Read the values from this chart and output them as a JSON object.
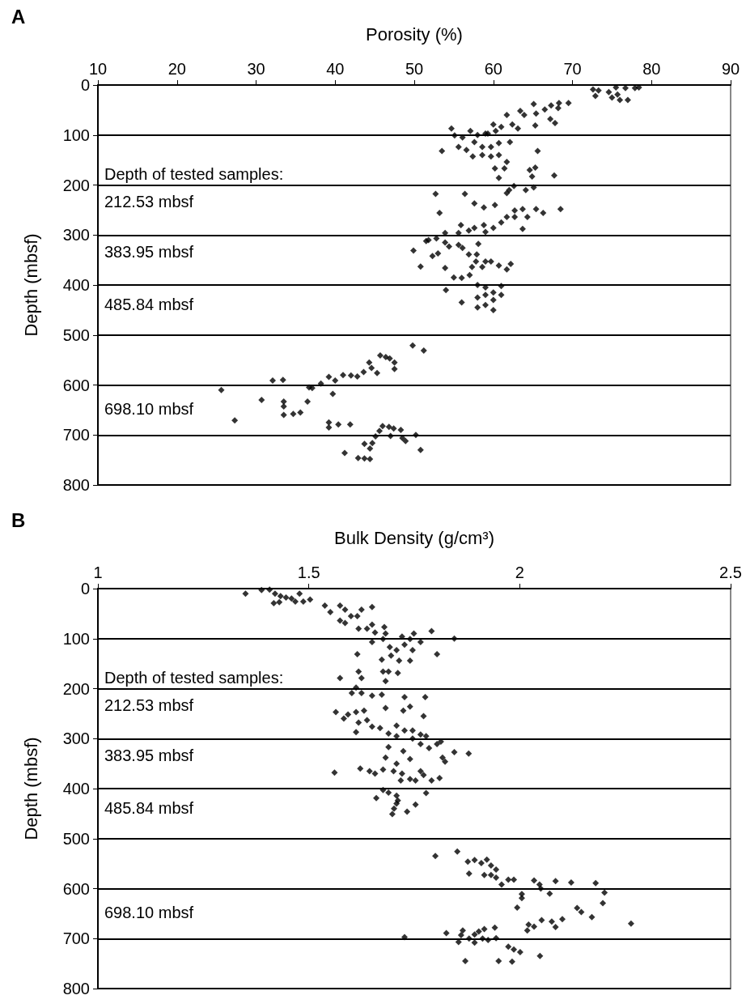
{
  "chart_data": [
    {
      "type": "scatter",
      "title": "A",
      "xlabel": "Porosity (%)",
      "ylabel": "Depth (mbsf)",
      "xlim": [
        10,
        90
      ],
      "xticks": [
        10,
        20,
        30,
        40,
        50,
        60,
        70,
        80,
        90
      ],
      "ylim": [
        800,
        0
      ],
      "yticks": [
        0,
        100,
        200,
        300,
        400,
        500,
        600,
        700,
        800
      ],
      "grid": "y",
      "marker": "diamond",
      "annotations": [
        "Depth of tested samples:",
        "212.53 mbsf",
        "383.95 mbsf",
        "485.84 mbsf",
        "698.10 mbsf"
      ],
      "series": [
        {
          "color": "#000000",
          "x": [
            72.6,
            72.9,
            74.6,
            75,
            75.7,
            76,
            75.5,
            76.7,
            77,
            77.9,
            78.4,
            73.3,
            65.1,
            67.3,
            68.3,
            69.5,
            68.2,
            63.4,
            63.9,
            65.4,
            66.5,
            67.2,
            67.8,
            65.3,
            61.7,
            62.4,
            63.1,
            60,
            61,
            59.3,
            54.7,
            55.1,
            56.1,
            57.1,
            58,
            59,
            60.3,
            55.6,
            56.6,
            57.6,
            58.6,
            59.7,
            60.7,
            62.1,
            57.4,
            58.6,
            59.7,
            60.7,
            61.7,
            53.5,
            60.2,
            61.4,
            60.7,
            65.6,
            64.6,
            65.3,
            64.9,
            67.7,
            62.6,
            61.7,
            62,
            64.1,
            65.1,
            52.7,
            56.4,
            53.2,
            57.6,
            58.8,
            60.2,
            68.5,
            62.7,
            63.7,
            65.4,
            66.3,
            61.7,
            62.7,
            64.3,
            63.7,
            61,
            60,
            58.8,
            59,
            57.6,
            55.9,
            56.9,
            55.6,
            53.9,
            52.8,
            51.8,
            51.5,
            49.9,
            50.8,
            52.3,
            53,
            53.9,
            54.4,
            55.6,
            56.1,
            56.9,
            58.1,
            57.9,
            57.8,
            59,
            59.7,
            60.7,
            62.2,
            57.3,
            58.6,
            61.7,
            53.9,
            55,
            56,
            57,
            54,
            56,
            58,
            59,
            60,
            61,
            59,
            58,
            60,
            59,
            60,
            58,
            61,
            25.6,
            27.3,
            30.7,
            32.1,
            33.4,
            33.5,
            33.5,
            33.5,
            34.7,
            35.6,
            36.5,
            36.7,
            37.1,
            38.2,
            39.2,
            40,
            39.7,
            41,
            42,
            42.8,
            43.6,
            44.3,
            44.6,
            45.3,
            45.7,
            46.4,
            46.9,
            47.5,
            47.5,
            49.8,
            51.2,
            39.2,
            39.2,
            40.4,
            41.9,
            41.2,
            42.9,
            43.7,
            44.4,
            43.7,
            44.7,
            44.4,
            45.1,
            45.6,
            46,
            46.8,
            47.4,
            48.3,
            47,
            48.5,
            48.9,
            50.2,
            50.8
          ],
          "values": [
            9,
            22,
            14,
            25,
            19,
            30,
            5,
            6,
            30,
            6,
            5,
            11,
            38,
            41,
            36,
            36,
            46,
            52,
            60,
            57,
            49,
            68,
            76,
            81,
            60,
            79,
            87,
            79,
            84,
            97,
            87,
            101,
            105,
            92,
            100,
            97,
            92,
            124,
            130,
            114,
            124,
            124,
            116,
            114,
            143,
            140,
            143,
            140,
            154,
            132,
            167,
            167,
            186,
            132,
            170,
            165,
            183,
            181,
            202,
            216,
            210,
            210,
            205,
            218,
            218,
            256,
            237,
            245,
            240,
            248,
            251,
            248,
            248,
            256,
            264,
            264,
            264,
            288,
            275,
            286,
            280,
            294,
            286,
            280,
            291,
            296,
            296,
            307,
            310,
            312,
            331,
            363,
            342,
            337,
            315,
            323,
            320,
            326,
            339,
            318,
            339,
            353,
            353,
            353,
            361,
            358,
            364,
            364,
            369,
            366,
            385,
            386,
            380,
            410,
            435,
            400,
            405,
            415,
            402,
            420,
            425,
            430,
            440,
            450,
            445,
            420,
            610,
            671,
            630,
            591,
            590,
            633,
            643,
            660,
            658,
            655,
            633,
            605,
            606,
            597,
            584,
            591,
            618,
            580,
            581,
            583,
            574,
            555,
            566,
            576,
            541,
            544,
            547,
            555,
            568,
            521,
            531,
            675,
            685,
            679,
            679,
            736,
            746,
            747,
            748,
            718,
            716,
            727,
            703,
            692,
            682,
            684,
            687,
            690,
            702,
            706,
            712,
            700,
            730
          ]
        }
      ]
    },
    {
      "type": "scatter",
      "title": "B",
      "xlabel": "Bulk Density (g/cm³)",
      "ylabel": "Depth (mbsf)",
      "xlim": [
        1,
        2.5
      ],
      "xticks": [
        1,
        1.5,
        2,
        2.5
      ],
      "ylim": [
        800,
        0
      ],
      "yticks": [
        0,
        100,
        200,
        300,
        400,
        500,
        600,
        700,
        800
      ],
      "grid": "y",
      "marker": "diamond",
      "annotations": [
        "Depth of tested samples:",
        "212.53 mbsf",
        "383.95 mbsf",
        "485.84 mbsf",
        "698.10 mbsf"
      ],
      "series": [
        {
          "color": "#000000",
          "x": [
            1.35,
            1.388,
            1.407,
            1.42,
            1.433,
            1.446,
            1.459,
            1.417,
            1.43,
            1.468,
            1.478,
            1.487,
            1.503,
            1.538,
            1.551,
            1.574,
            1.586,
            1.574,
            1.586,
            1.6,
            1.615,
            1.625,
            1.65,
            1.618,
            1.638,
            1.65,
            1.657,
            1.679,
            1.682,
            1.676,
            1.791,
            1.845,
            1.65,
            1.721,
            1.74,
            1.749,
            1.765,
            1.692,
            1.708,
            1.727,
            1.746,
            1.695,
            1.714,
            1.74,
            1.673,
            1.615,
            1.804,
            1.618,
            1.625,
            1.574,
            1.676,
            1.689,
            1.682,
            1.711,
            1.612,
            1.602,
            1.625,
            1.65,
            1.673,
            1.727,
            1.776,
            1.74,
            1.724,
            1.682,
            1.772,
            1.564,
            1.583,
            1.593,
            1.612,
            1.631,
            1.618,
            1.638,
            1.612,
            1.65,
            1.669,
            1.708,
            1.689,
            1.708,
            1.727,
            1.746,
            1.765,
            1.778,
            1.746,
            1.765,
            1.785,
            1.804,
            1.813,
            1.845,
            1.879,
            1.689,
            1.724,
            1.74,
            1.682,
            1.708,
            1.817,
            1.823,
            1.561,
            1.622,
            1.644,
            1.657,
            1.676,
            1.701,
            1.721,
            1.74,
            1.765,
            1.772,
            1.791,
            1.81,
            1.753,
            1.718,
            1.676,
            1.689,
            1.708,
            1.66,
            1.711,
            1.702,
            1.708,
            1.698,
            1.733,
            1.753,
            1.778,
            1.8,
            1.852,
            1.877,
            1.893,
            1.909,
            1.922,
            1.88,
            1.916,
            1.932,
            1.932,
            1.944,
            1.944,
            1.957,
            1.973,
            1.986,
            2.034,
            2.047,
            2.05,
            2.071,
            2.085,
            2.122,
            2.18,
            2.201,
            2.197,
            2.005,
            2.005,
            1.994,
            2.136,
            2.146,
            2.171,
            2.264,
            2.101,
            2.076,
            2.085,
            2.052,
            2.021,
            2.034,
            2.018,
            1.727,
            1.826,
            1.865,
            1.861,
            1.855,
            1.88,
            1.893,
            1.893,
            1.903,
            1.916,
            1.912,
            1.925,
            1.941,
            1.944,
            1.871,
            1.95,
            1.982,
            1.973,
            1.986,
            2.001,
            2.048
          ],
          "values": [
            10,
            3,
            2,
            10,
            15,
            18,
            20,
            29,
            27,
            26,
            10,
            26,
            22,
            34,
            47,
            34,
            42,
            64,
            69,
            55,
            55,
            42,
            37,
            80,
            80,
            72,
            88,
            77,
            90,
            101,
            85,
            100,
            107,
            96,
            101,
            90,
            107,
            117,
            123,
            112,
            123,
            134,
            144,
            144,
            142,
            131,
            131,
            166,
            179,
            179,
            166,
            166,
            185,
            169,
            198,
            209,
            209,
            214,
            212,
            217,
            217,
            236,
            244,
            239,
            255,
            247,
            260,
            252,
            247,
            244,
            268,
            263,
            287,
            276,
            279,
            274,
            290,
            295,
            284,
            284,
            292,
            295,
            300,
            311,
            319,
            311,
            306,
            327,
            330,
            317,
            325,
            341,
            338,
            350,
            338,
            346,
            368,
            360,
            365,
            370,
            362,
            365,
            370,
            381,
            365,
            373,
            384,
            379,
            384,
            384,
            403,
            408,
            414,
            419,
            424,
            440,
            430,
            451,
            446,
            432,
            409,
            535,
            526,
            546,
            543,
            549,
            542,
            570,
            573,
            554,
            573,
            562,
            578,
            592,
            582,
            582,
            584,
            592,
            600,
            610,
            585,
            588,
            589,
            608,
            629,
            611,
            619,
            638,
            639,
            647,
            657,
            670,
            661,
            666,
            677,
            663,
            672,
            676,
            684,
            697,
            689,
            684,
            693,
            707,
            700,
            692,
            708,
            686,
            681,
            700,
            703,
            678,
            699,
            745,
            745,
            746,
            716,
            722,
            727,
            735
          ]
        }
      ]
    }
  ]
}
